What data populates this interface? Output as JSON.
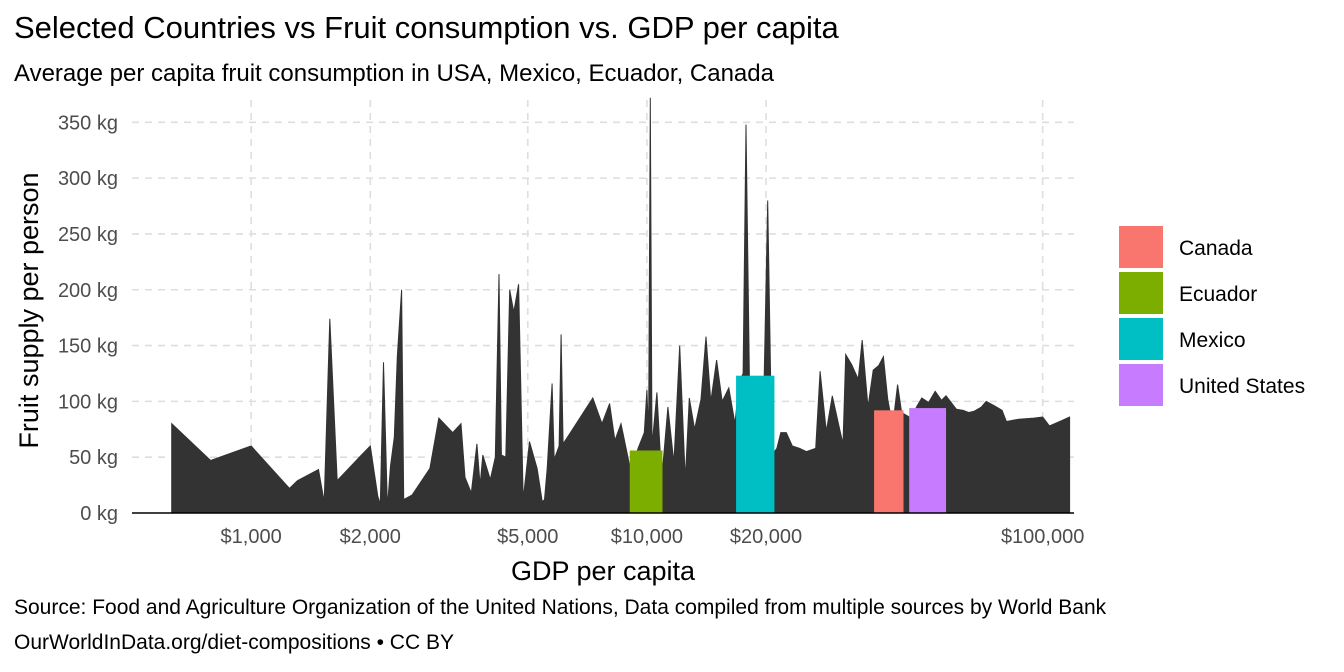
{
  "header": {
    "title": "Selected Countries vs Fruit consumption vs. GDP per capita",
    "subtitle": "Average per capita fruit consumption in USA, Mexico, Ecuador, Canada"
  },
  "footer": {
    "source": "Source: Food and Agriculture Organization of the United Nations, Data compiled from multiple sources by World Bank",
    "license": "OurWorldInData.org/diet-compositions • CC BY"
  },
  "chart_data": {
    "type": "area",
    "xlabel": "GDP per capita",
    "ylabel": "Fruit supply per person",
    "x_scale": "log",
    "xlim": [
      500,
      120000
    ],
    "ylim": [
      0,
      370
    ],
    "x_ticks": [
      {
        "value": 1000,
        "label": "$1,000"
      },
      {
        "value": 2000,
        "label": "$2,000"
      },
      {
        "value": 5000,
        "label": "$5,000"
      },
      {
        "value": 10000,
        "label": "$10,000"
      },
      {
        "value": 20000,
        "label": "$20,000"
      },
      {
        "value": 100000,
        "label": "$100,000"
      }
    ],
    "y_ticks": [
      {
        "value": 0,
        "label": "0 kg"
      },
      {
        "value": 50,
        "label": "50 kg"
      },
      {
        "value": 100,
        "label": "100 kg"
      },
      {
        "value": 150,
        "label": "150 kg"
      },
      {
        "value": 200,
        "label": "200 kg"
      },
      {
        "value": 250,
        "label": "250 kg"
      },
      {
        "value": 300,
        "label": "300 kg"
      },
      {
        "value": 350,
        "label": "350 kg"
      }
    ],
    "grid": true,
    "background_series": {
      "color": "#333333",
      "points": [
        [
          630,
          80
        ],
        [
          790,
          47
        ],
        [
          1000,
          60
        ],
        [
          1250,
          22
        ],
        [
          1310,
          29
        ],
        [
          1480,
          39
        ],
        [
          1530,
          10
        ],
        [
          1580,
          174
        ],
        [
          1650,
          29
        ],
        [
          1900,
          52
        ],
        [
          2000,
          60
        ],
        [
          2090,
          15
        ],
        [
          2120,
          8
        ],
        [
          2160,
          135
        ],
        [
          2210,
          5
        ],
        [
          2250,
          42
        ],
        [
          2300,
          68
        ],
        [
          2340,
          140
        ],
        [
          2400,
          200
        ],
        [
          2430,
          12
        ],
        [
          2550,
          16
        ],
        [
          2830,
          40
        ],
        [
          2980,
          85
        ],
        [
          3230,
          72
        ],
        [
          3390,
          80
        ],
        [
          3470,
          32
        ],
        [
          3600,
          18
        ],
        [
          3720,
          62
        ],
        [
          3790,
          25
        ],
        [
          3850,
          52
        ],
        [
          4020,
          30
        ],
        [
          4140,
          50
        ],
        [
          4230,
          214
        ],
        [
          4290,
          52
        ],
        [
          4400,
          50
        ],
        [
          4500,
          200
        ],
        [
          4610,
          180
        ],
        [
          4740,
          205
        ],
        [
          4870,
          12
        ],
        [
          5050,
          64
        ],
        [
          5280,
          40
        ],
        [
          5440,
          10
        ],
        [
          5510,
          12
        ],
        [
          5600,
          40
        ],
        [
          5760,
          116
        ],
        [
          5830,
          48
        ],
        [
          6000,
          60
        ],
        [
          6070,
          160
        ],
        [
          6140,
          62
        ],
        [
          6300,
          68
        ],
        [
          7300,
          103
        ],
        [
          7700,
          80
        ],
        [
          8050,
          98
        ],
        [
          8300,
          65
        ],
        [
          8600,
          80
        ],
        [
          9100,
          38
        ],
        [
          9500,
          58
        ],
        [
          9850,
          72
        ],
        [
          10000,
          110
        ],
        [
          10100,
          70
        ],
        [
          10200,
          372
        ],
        [
          10300,
          60
        ],
        [
          10600,
          108
        ],
        [
          10900,
          30
        ],
        [
          11300,
          95
        ],
        [
          11700,
          45
        ],
        [
          12100,
          150
        ],
        [
          12500,
          30
        ],
        [
          12800,
          103
        ],
        [
          13200,
          75
        ],
        [
          13700,
          102
        ],
        [
          14100,
          158
        ],
        [
          14500,
          100
        ],
        [
          15000,
          137
        ],
        [
          15500,
          100
        ],
        [
          16100,
          112
        ],
        [
          16700,
          80
        ],
        [
          17100,
          117
        ],
        [
          17500,
          125
        ],
        [
          17800,
          348
        ],
        [
          18200,
          95
        ],
        [
          18800,
          105
        ],
        [
          19200,
          55
        ],
        [
          19700,
          86
        ],
        [
          20200,
          280
        ],
        [
          20700,
          52
        ],
        [
          21300,
          58
        ],
        [
          21800,
          72
        ],
        [
          22500,
          72
        ],
        [
          23300,
          60
        ],
        [
          24300,
          58
        ],
        [
          25300,
          55
        ],
        [
          26700,
          58
        ],
        [
          27400,
          127
        ],
        [
          28400,
          73
        ],
        [
          29400,
          105
        ],
        [
          30700,
          75
        ],
        [
          31300,
          62
        ],
        [
          31800,
          142
        ],
        [
          32900,
          133
        ],
        [
          34200,
          120
        ],
        [
          35000,
          155
        ],
        [
          36200,
          95
        ],
        [
          37300,
          128
        ],
        [
          38500,
          132
        ],
        [
          39600,
          140
        ],
        [
          40600,
          102
        ],
        [
          41800,
          78
        ],
        [
          43000,
          115
        ],
        [
          44000,
          90
        ],
        [
          46500,
          85
        ],
        [
          48000,
          95
        ],
        [
          49500,
          103
        ],
        [
          51500,
          99
        ],
        [
          53500,
          109
        ],
        [
          55500,
          101
        ],
        [
          57000,
          105
        ],
        [
          60500,
          93
        ],
        [
          63000,
          92
        ],
        [
          65000,
          90
        ],
        [
          67000,
          91
        ],
        [
          70000,
          95
        ],
        [
          72000,
          100
        ],
        [
          75500,
          96
        ],
        [
          79000,
          92
        ],
        [
          81000,
          82
        ],
        [
          87000,
          84
        ],
        [
          95000,
          85
        ],
        [
          100000,
          86
        ],
        [
          104000,
          78
        ],
        [
          112000,
          83
        ],
        [
          117000,
          86
        ]
      ]
    },
    "series": [
      {
        "name": "Canada",
        "x_range": [
          37500,
          44500
        ],
        "value": 92,
        "color": "#F8766D"
      },
      {
        "name": "Ecuador",
        "x_range": [
          9050,
          10950
        ],
        "value": 56,
        "color": "#7CAE00"
      },
      {
        "name": "Mexico",
        "x_range": [
          16800,
          21000
        ],
        "value": 123,
        "color": "#00BFC4"
      },
      {
        "name": "United States",
        "x_range": [
          46000,
          57000
        ],
        "value": 94,
        "color": "#C77CFF"
      }
    ],
    "legend_placement": "right"
  }
}
